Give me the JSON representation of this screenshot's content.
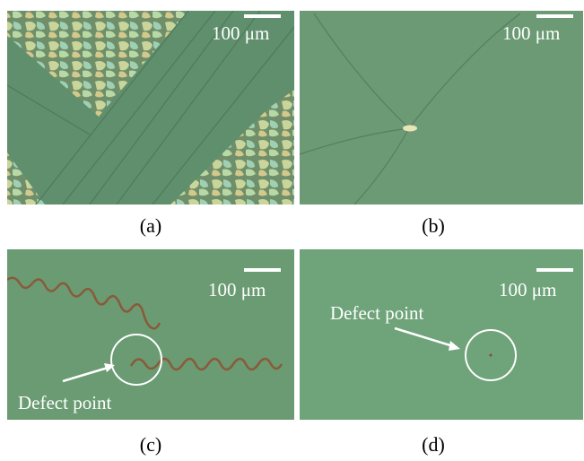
{
  "panels": [
    {
      "label": "(a)",
      "scale": "100 μm"
    },
    {
      "label": "(b)",
      "scale": "100 μm"
    },
    {
      "label": "(c)",
      "scale": "100 μm",
      "annotation": "Defect point"
    },
    {
      "label": "(d)",
      "scale": "100 μm",
      "annotation": "Defect point"
    }
  ]
}
